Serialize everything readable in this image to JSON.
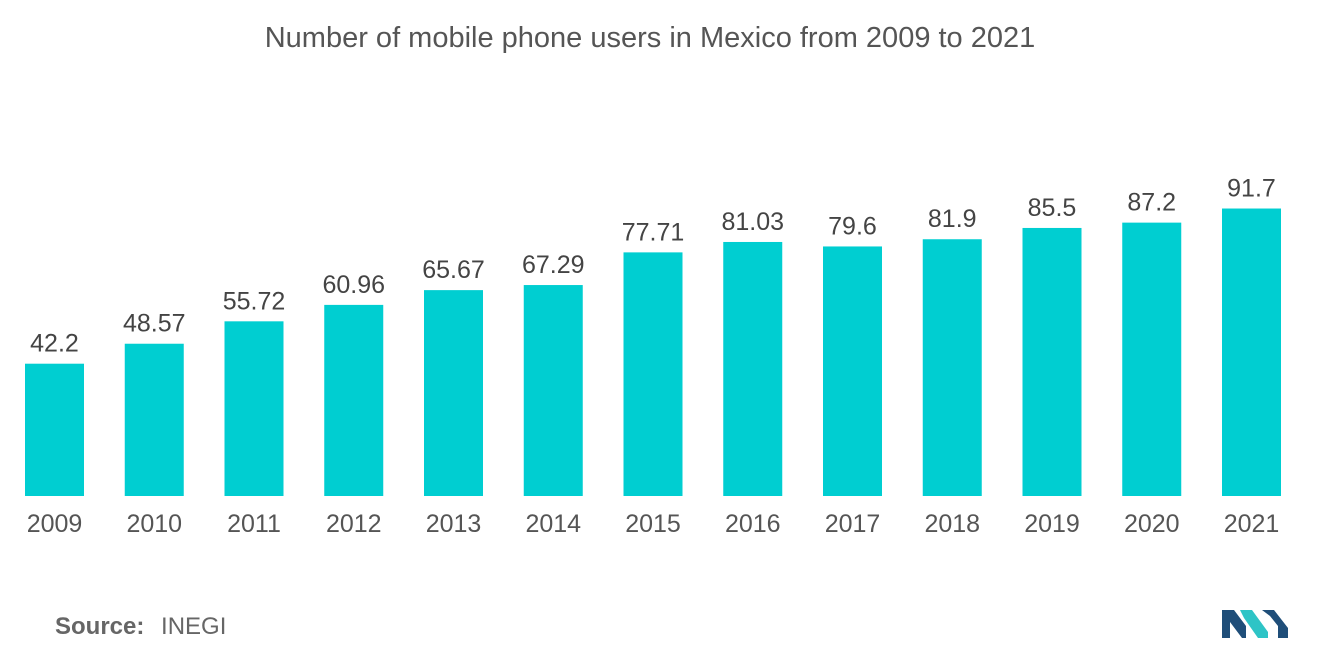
{
  "chart_data": {
    "type": "bar",
    "title": "Number of mobile phone users in Mexico from 2009 to 2021",
    "categories": [
      "2009",
      "2010",
      "2011",
      "2012",
      "2013",
      "2014",
      "2015",
      "2016",
      "2017",
      "2018",
      "2019",
      "2020",
      "2021"
    ],
    "values": [
      42.2,
      48.57,
      55.72,
      60.96,
      65.67,
      67.29,
      77.71,
      81.03,
      79.6,
      81.9,
      85.5,
      87.2,
      91.7
    ],
    "data_labels": [
      "42.2",
      "48.57",
      "55.72",
      "60.96",
      "65.67",
      "67.29",
      "77.71",
      "81.03",
      "79.6",
      "81.9",
      "85.5",
      "87.2",
      "91.7"
    ],
    "xlabel": "",
    "ylabel": "",
    "grid": false,
    "legend": "none",
    "bar_color": "#00CED1"
  },
  "source": {
    "label": "Source:",
    "value": "INEGI"
  },
  "colors": {
    "bar": "#00CED1",
    "text": "#555555",
    "logo_dark": "#1f4e79",
    "logo_light": "#2ec4c6"
  }
}
